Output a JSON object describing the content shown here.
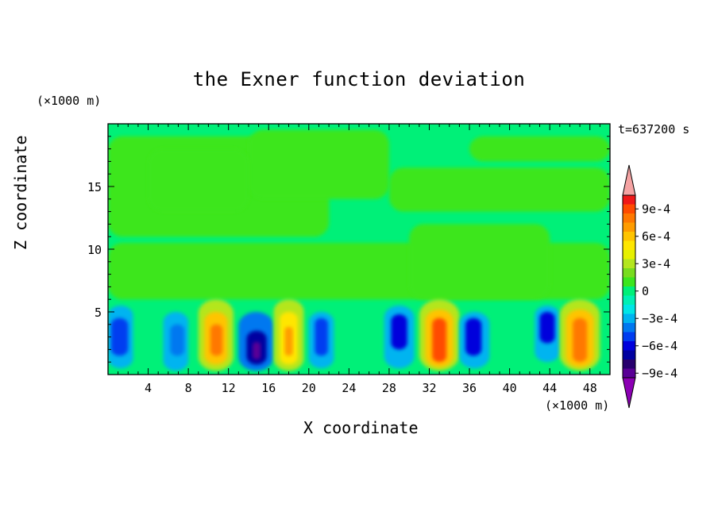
{
  "chart_data": {
    "type": "heatmap",
    "title": "the Exner function deviation",
    "xlabel": "X coordinate",
    "ylabel": "Z coordinate",
    "x_unit": "(×1000 m)",
    "y_unit": "(×1000 m)",
    "annotation": "t=637200 s",
    "xlim": [
      0,
      50
    ],
    "ylim": [
      0,
      20
    ],
    "x_ticks": [
      "4",
      "8",
      "12",
      "16",
      "20",
      "24",
      "28",
      "32",
      "36",
      "40",
      "44",
      "48"
    ],
    "y_ticks": [
      "5",
      "10",
      "15"
    ],
    "colorbar": {
      "labels": [
        "9e-4",
        "6e-4",
        "3e-4",
        "0",
        "−3e-4",
        "−6e-4",
        "−9e-4"
      ],
      "levels_max_to_min": [
        0.0011,
        0.001,
        0.0009,
        0.0008,
        0.0007,
        0.0006,
        0.0005,
        0.0004,
        0.0003,
        0.0002,
        0.0001,
        0.0,
        -0.0001,
        -0.0002,
        -0.0003,
        -0.0004,
        -0.0005,
        -0.0006,
        -0.0007,
        -0.0008,
        -0.0009,
        -0.001
      ],
      "colors_max_to_min": [
        "#f5a3a3",
        "#f01818",
        "#ff4b00",
        "#ff7800",
        "#ff9c00",
        "#ffc400",
        "#ffe600",
        "#e6f000",
        "#b4e61e",
        "#78dc1e",
        "#3ce61e",
        "#00f078",
        "#00f0b4",
        "#00e6e6",
        "#00b4f0",
        "#0078f0",
        "#003cf0",
        "#0000dc",
        "#0000a0",
        "#28006e",
        "#5a0096",
        "#8c00b4"
      ]
    },
    "background_color": "#00f078",
    "cells": [
      {
        "x": [
          0,
          2.5
        ],
        "z": [
          0.5,
          5.5
        ],
        "v": -0.0003
      },
      {
        "x": [
          0.3,
          2.0
        ],
        "z": [
          1.5,
          4.5
        ],
        "v": -0.0005
      },
      {
        "x": [
          5.5,
          8.0
        ],
        "z": [
          0.3,
          5.0
        ],
        "v": -0.0003
      },
      {
        "x": [
          6.2,
          7.6
        ],
        "z": [
          1.5,
          4.0
        ],
        "v": -0.0004
      },
      {
        "x": [
          9.0,
          12.5
        ],
        "z": [
          0.3,
          6.0
        ],
        "v": 0.0003
      },
      {
        "x": [
          9.6,
          11.9
        ],
        "z": [
          0.8,
          5.0
        ],
        "v": 0.0006
      },
      {
        "x": [
          10.2,
          11.4
        ],
        "z": [
          1.5,
          4.0
        ],
        "v": 0.0008
      },
      {
        "x": [
          13.0,
          16.5
        ],
        "z": [
          0.3,
          5.0
        ],
        "v": -0.0004
      },
      {
        "x": [
          13.8,
          15.8
        ],
        "z": [
          0.8,
          3.5
        ],
        "v": -0.0007
      },
      {
        "x": [
          14.4,
          15.2
        ],
        "z": [
          1.2,
          2.6
        ],
        "v": -0.0009
      },
      {
        "x": [
          16.5,
          19.5
        ],
        "z": [
          0.3,
          6.0
        ],
        "v": 0.0003
      },
      {
        "x": [
          17.1,
          18.9
        ],
        "z": [
          0.8,
          5.0
        ],
        "v": 0.0005
      },
      {
        "x": [
          17.6,
          18.4
        ],
        "z": [
          1.5,
          3.8
        ],
        "v": 0.0007
      },
      {
        "x": [
          20.0,
          22.5
        ],
        "z": [
          0.5,
          5.0
        ],
        "v": -0.0003
      },
      {
        "x": [
          20.6,
          21.9
        ],
        "z": [
          1.5,
          4.5
        ],
        "v": -0.0005
      },
      {
        "x": [
          27.5,
          30.5
        ],
        "z": [
          0.5,
          5.5
        ],
        "v": -0.0003
      },
      {
        "x": [
          28.2,
          29.8
        ],
        "z": [
          2.0,
          4.8
        ],
        "v": -0.0006
      },
      {
        "x": [
          31.0,
          35.0
        ],
        "z": [
          0.3,
          6.0
        ],
        "v": 0.0003
      },
      {
        "x": [
          31.6,
          34.4
        ],
        "z": [
          0.6,
          5.2
        ],
        "v": 0.0006
      },
      {
        "x": [
          32.3,
          33.7
        ],
        "z": [
          1.0,
          4.5
        ],
        "v": 0.0009
      },
      {
        "x": [
          35.0,
          38.0
        ],
        "z": [
          0.5,
          5.0
        ],
        "v": -0.0003
      },
      {
        "x": [
          35.6,
          37.2
        ],
        "z": [
          1.5,
          4.5
        ],
        "v": -0.0006
      },
      {
        "x": [
          42.5,
          45.0
        ],
        "z": [
          1.0,
          5.5
        ],
        "v": -0.0003
      },
      {
        "x": [
          43.0,
          44.5
        ],
        "z": [
          2.5,
          5.0
        ],
        "v": -0.0006
      },
      {
        "x": [
          45.0,
          49.0
        ],
        "z": [
          0.3,
          6.0
        ],
        "v": 0.0003
      },
      {
        "x": [
          45.6,
          48.4
        ],
        "z": [
          0.6,
          5.2
        ],
        "v": 0.0006
      },
      {
        "x": [
          46.3,
          47.7
        ],
        "z": [
          1.0,
          4.5
        ],
        "v": 0.0008
      }
    ]
  }
}
